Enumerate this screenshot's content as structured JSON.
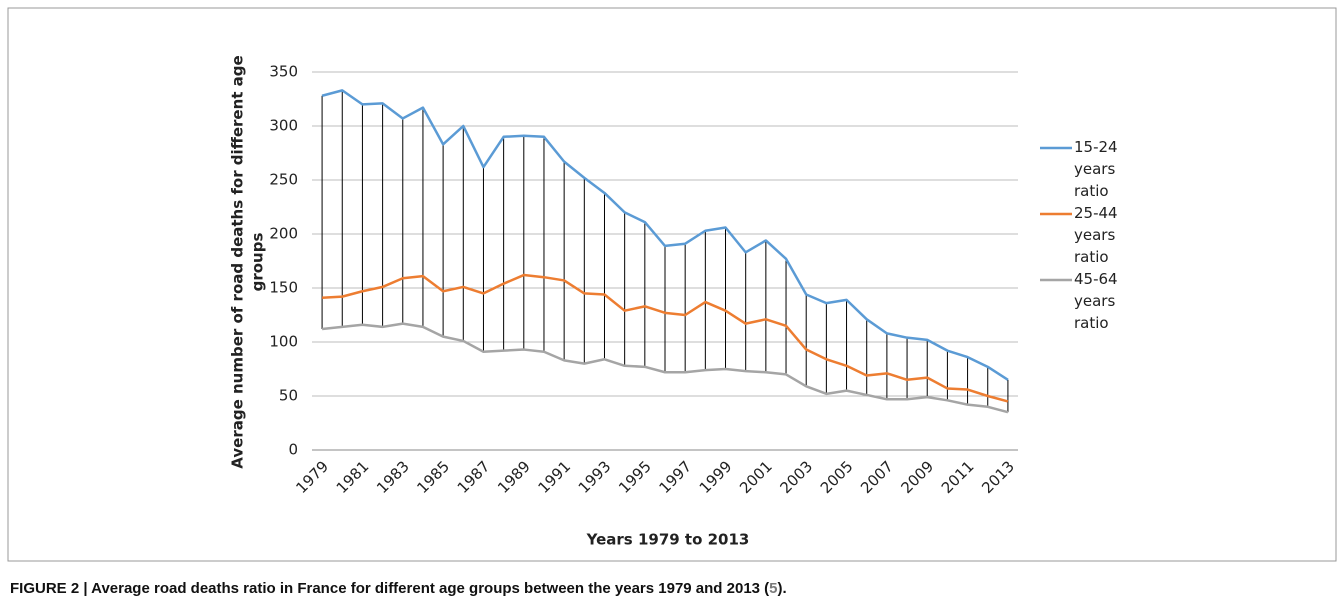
{
  "chart_data": {
    "type": "line",
    "y_label": [
      "Average number of road deaths for different age",
      "groups"
    ],
    "x_label": "Years 1979 to  2013",
    "categories": [
      "1979",
      null,
      "1981",
      null,
      "1983",
      null,
      "1985",
      null,
      "1987",
      null,
      "1989",
      null,
      "1991",
      null,
      "1993",
      null,
      "1995",
      null,
      "1997",
      null,
      "1999",
      null,
      "2001",
      null,
      "2003",
      null,
      "2005",
      null,
      "2007",
      null,
      "2009",
      null,
      "2011",
      null,
      "2013"
    ],
    "series": [
      {
        "name": "15-24 years ratio",
        "color": "#5b9bd5",
        "values": [
          328,
          333,
          320,
          321,
          307,
          317,
          283,
          300,
          262,
          290,
          291,
          290,
          267,
          252,
          238,
          220,
          211,
          189,
          191,
          203,
          206,
          183,
          194,
          177,
          144,
          136,
          139,
          121,
          108,
          104,
          102,
          92,
          86,
          77,
          65
        ]
      },
      {
        "name": "25-44 years ratio",
        "color": "#ed7d31",
        "values": [
          141,
          142,
          147,
          151,
          159,
          161,
          147,
          151,
          145,
          154,
          162,
          160,
          157,
          145,
          144,
          129,
          133,
          127,
          125,
          137,
          129,
          117,
          121,
          115,
          93,
          84,
          78,
          69,
          71,
          65,
          67,
          57,
          56,
          50,
          45
        ]
      },
      {
        "name": "45-64 years ratio",
        "color": "#a5a5a5",
        "values": [
          112,
          114,
          116,
          114,
          117,
          114,
          105,
          101,
          91,
          92,
          93,
          91,
          83,
          80,
          84,
          78,
          77,
          72,
          72,
          74,
          75,
          73,
          72,
          70,
          59,
          52,
          55,
          51,
          47,
          47,
          49,
          46,
          42,
          40,
          35
        ]
      }
    ],
    "high_low_lines": true,
    "ylim": [
      0,
      350
    ],
    "yticks": [
      0,
      50,
      100,
      150,
      200,
      250,
      300,
      350
    ],
    "grid": true,
    "legend": "right"
  },
  "caption": {
    "label": "FIGURE 2",
    "text": "Average road deaths ratio in France for different age groups between the years 1979 and 2013 (",
    "ref": "5",
    "end": ")."
  }
}
